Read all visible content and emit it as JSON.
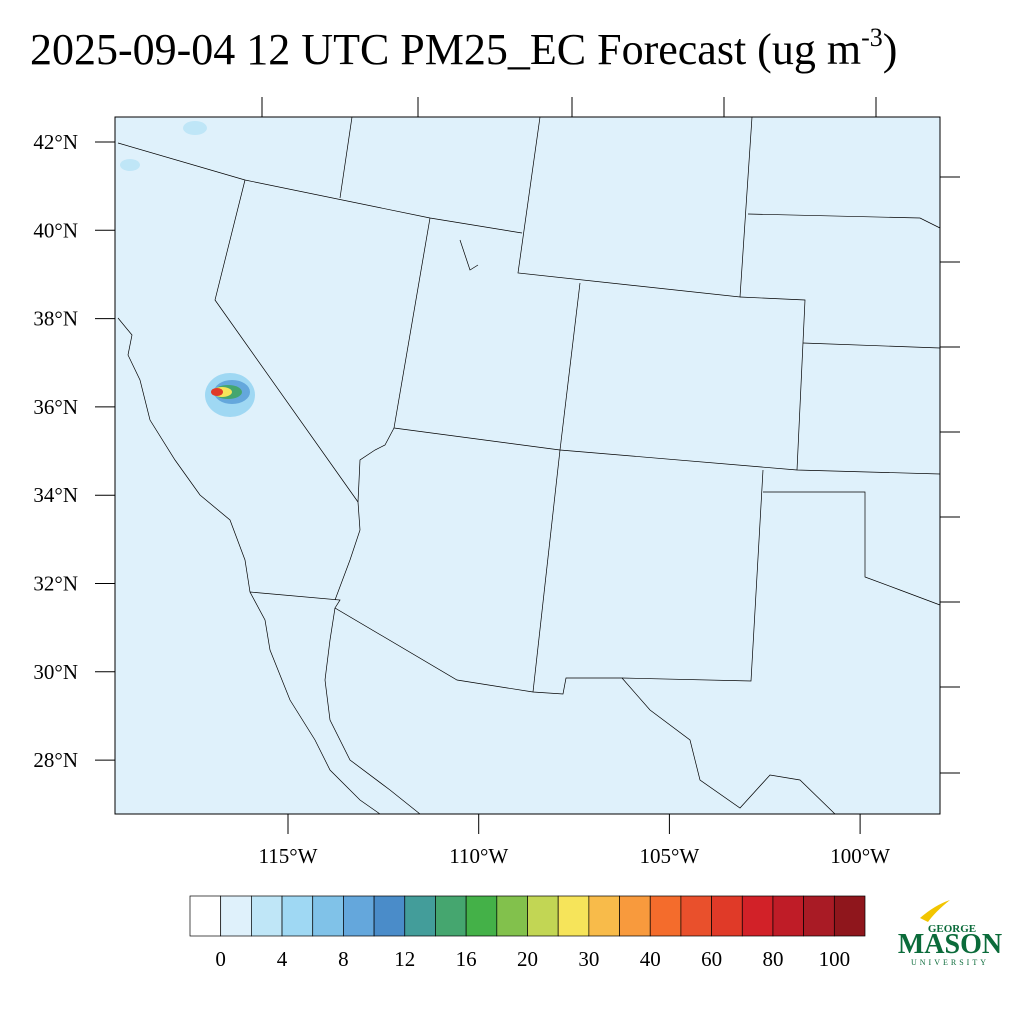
{
  "header": {
    "title": "2025-09-04 12 UTC PM25_EC Forecast (ug m",
    "title_sup": "-3",
    "title_end": ")"
  },
  "map": {
    "lat_labels": [
      "42°N",
      "40°N",
      "38°N",
      "36°N",
      "34°N",
      "32°N",
      "30°N",
      "28°N"
    ],
    "lon_labels": [
      "115°W",
      "110°W",
      "105°W",
      "100°W"
    ],
    "background": "#dff1fb"
  },
  "colorbar": {
    "colors": [
      "#ffffff",
      "#dff1fb",
      "#bfe6f7",
      "#9fd8f3",
      "#80c2e8",
      "#64a7dc",
      "#4a8cc9",
      "#439d9a",
      "#45a66f",
      "#44b148",
      "#82c14c",
      "#c2d654",
      "#f6e45a",
      "#f8bb4a",
      "#f89a3d",
      "#f46c2c",
      "#e9502c",
      "#e03a28",
      "#d22128",
      "#bf1c27",
      "#a91b25",
      "#8f161c"
    ],
    "ticks": [
      0,
      4,
      8,
      12,
      16,
      20,
      30,
      40,
      60,
      80,
      100
    ]
  },
  "logo": {
    "top": "GEORGE",
    "main": "MASON",
    "bottom": "UNIVERSITY"
  }
}
